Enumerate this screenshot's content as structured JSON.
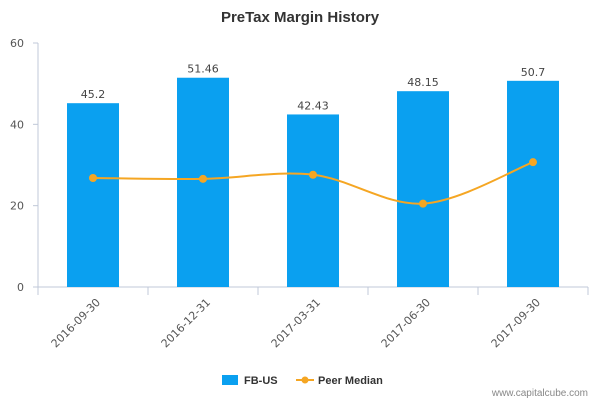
{
  "chart_data": {
    "type": "bar",
    "title": "PreTax Margin History",
    "categories": [
      "2016-09-30",
      "2016-12-31",
      "2017-03-31",
      "2017-06-30",
      "2017-09-30"
    ],
    "series": [
      {
        "name": "FB-US",
        "kind": "bar",
        "values": [
          45.2,
          51.46,
          42.43,
          48.15,
          50.7
        ],
        "color": "#0aa0f0",
        "labels": [
          "45.2",
          "51.46",
          "42.43",
          "48.15",
          "50.7"
        ]
      },
      {
        "name": "Peer Median",
        "kind": "line",
        "values": [
          26.8,
          26.6,
          27.6,
          20.5,
          30.7
        ],
        "color": "#f5a623"
      }
    ],
    "xlabel": "",
    "ylabel": "",
    "ylim": [
      0,
      60
    ],
    "yticks": [
      "0",
      "20",
      "40",
      "60"
    ],
    "grid": false,
    "legend": "bottom-center"
  },
  "footer": {
    "credit": "www.capitalcube.com"
  }
}
